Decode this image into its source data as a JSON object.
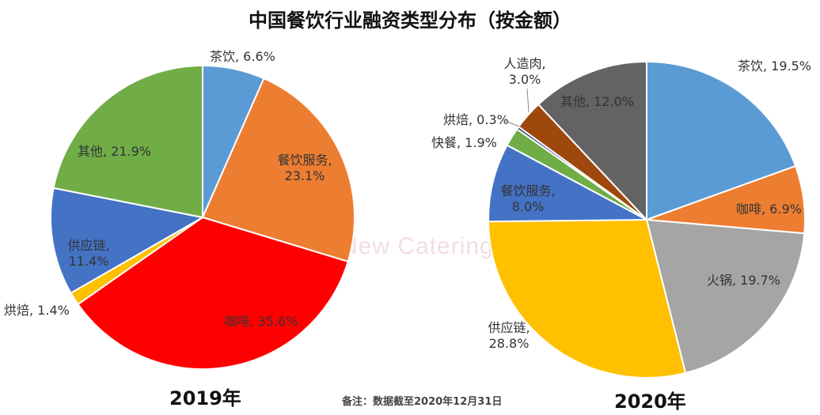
{
  "title": "中国餐饮行业融资类型分布（按金额）",
  "note": "备注：数据截至2020年12月31日",
  "watermark": "New Catering",
  "chart_data": [
    {
      "type": "pie",
      "label": "2019年",
      "slices": [
        {
          "name": "茶饮",
          "value": 6.6,
          "pct_label": "6.6%",
          "color": "#5B9BD5"
        },
        {
          "name": "餐饮服务",
          "value": 23.1,
          "pct_label": "23.1%",
          "color": "#ED7D31"
        },
        {
          "name": "咖啡",
          "value": 35.6,
          "pct_label": "35.6%",
          "color": "#FF0000"
        },
        {
          "name": "烘焙",
          "value": 1.4,
          "pct_label": "1.4%",
          "color": "#FFC000"
        },
        {
          "name": "供应链",
          "value": 11.4,
          "pct_label": "11.4%",
          "color": "#4472C4"
        },
        {
          "name": "其他",
          "value": 21.9,
          "pct_label": "21.9%",
          "color": "#70AD47"
        }
      ]
    },
    {
      "type": "pie",
      "label": "2020年",
      "slices": [
        {
          "name": "茶饮",
          "value": 19.5,
          "pct_label": "19.5%",
          "color": "#5B9BD5"
        },
        {
          "name": "咖啡",
          "value": 6.9,
          "pct_label": "6.9%",
          "color": "#ED7D31"
        },
        {
          "name": "火锅",
          "value": 19.7,
          "pct_label": "19.7%",
          "color": "#A5A5A5"
        },
        {
          "name": "供应链",
          "value": 28.8,
          "pct_label": "28.8%",
          "color": "#FFC000"
        },
        {
          "name": "餐饮服务",
          "value": 8.0,
          "pct_label": "8.0%",
          "color": "#4472C4"
        },
        {
          "name": "快餐",
          "value": 1.9,
          "pct_label": "1.9%",
          "color": "#70AD47"
        },
        {
          "name": "烘焙",
          "value": 0.3,
          "pct_label": "0.3%",
          "color": "#264478"
        },
        {
          "name": "人造肉",
          "value": 3.0,
          "pct_label": "3.0%",
          "color": "#9E480E"
        },
        {
          "name": "其他",
          "value": 12.0,
          "pct_label": "12.0%",
          "color": "#636363"
        }
      ]
    }
  ]
}
